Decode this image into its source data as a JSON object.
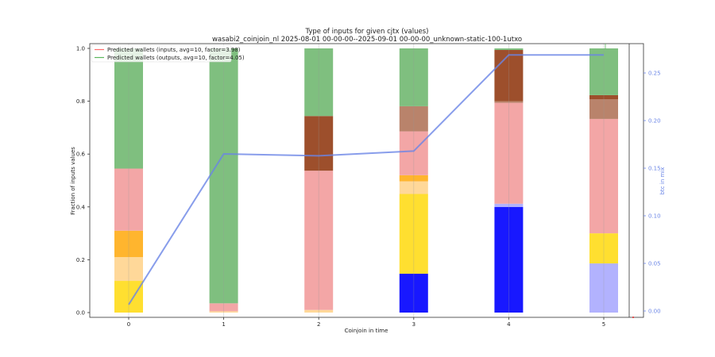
{
  "chart_data": {
    "type": "bar",
    "title": "Type of inputs for given cjtx (values)",
    "subtitle": "wasabi2_coinjoin_nl 2025-08-01 00-00-00--2025-09-01 00-00-00_unknown-static-100-1utxo",
    "xlabel": "Coinjoin in time",
    "ylabel": "Fraction of inputs values",
    "y2label": "btc in mix",
    "categories": [
      "0",
      "1",
      "2",
      "3",
      "4",
      "5"
    ],
    "ylim": [
      0,
      1.0
    ],
    "yticks": [
      "0.0",
      "0.2",
      "0.4",
      "0.6",
      "0.8",
      "1.0"
    ],
    "y2lim": [
      0,
      0.28
    ],
    "y2ticks": [
      "0.00",
      "0.05",
      "0.10",
      "0.15",
      "0.20",
      "0.25"
    ],
    "stacked_bars": [
      [
        {
          "color": "#ffdf30",
          "value": 0.12
        },
        {
          "color": "#ffd899",
          "value": 0.09
        },
        {
          "color": "#ffb52e",
          "value": 0.1
        },
        {
          "color": "#f3a6a6",
          "value": 0.235
        },
        {
          "color": "#7fbf7f",
          "value": 0.455
        }
      ],
      [
        {
          "color": "#ffd899",
          "value": 0.005
        },
        {
          "color": "#f3a6a6",
          "value": 0.03
        },
        {
          "color": "#7fbf7f",
          "value": 0.965
        }
      ],
      [
        {
          "color": "#ffd899",
          "value": 0.01
        },
        {
          "color": "#f3a6a6",
          "value": 0.527
        },
        {
          "color": "#9d4f2c",
          "value": 0.207
        },
        {
          "color": "#7fbf7f",
          "value": 0.256
        }
      ],
      [
        {
          "color": "#1818ff",
          "value": 0.147
        },
        {
          "color": "#ffdf30",
          "value": 0.302
        },
        {
          "color": "#ffd899",
          "value": 0.048
        },
        {
          "color": "#ffb52e",
          "value": 0.023
        },
        {
          "color": "#f3a6a6",
          "value": 0.166
        },
        {
          "color": "#b9836b",
          "value": 0.095
        },
        {
          "color": "#7fbf7f",
          "value": 0.219
        }
      ],
      [
        {
          "color": "#1818ff",
          "value": 0.4
        },
        {
          "color": "#b2b2fe",
          "value": 0.012
        },
        {
          "color": "#f3a6a6",
          "value": 0.382
        },
        {
          "color": "#b9836b",
          "value": 0.006
        },
        {
          "color": "#9d4f2c",
          "value": 0.194
        },
        {
          "color": "#7fbf7f",
          "value": 0.006
        }
      ],
      [
        {
          "color": "#b2b2fe",
          "value": 0.186
        },
        {
          "color": "#ffdf30",
          "value": 0.114
        },
        {
          "color": "#f3a6a6",
          "value": 0.433
        },
        {
          "color": "#b9836b",
          "value": 0.074
        },
        {
          "color": "#9d4f2c",
          "value": 0.016
        },
        {
          "color": "#7fbf7f",
          "value": 0.177
        }
      ]
    ],
    "series": [
      {
        "name": "btc in mix",
        "axis": "right",
        "color": "#6a85e6",
        "values": [
          0.0067,
          0.165,
          0.163,
          0.168,
          0.269,
          0.269
        ]
      }
    ],
    "legend": {
      "position": "top-left",
      "entries": [
        {
          "label": "Predicted wallets (inputs, avg=10, factor=3.98)",
          "color": "#ff6b6b"
        },
        {
          "label": "Predicted wallets (outputs, avg=10, factor=4.05)",
          "color": "#5cb85c"
        }
      ]
    }
  }
}
